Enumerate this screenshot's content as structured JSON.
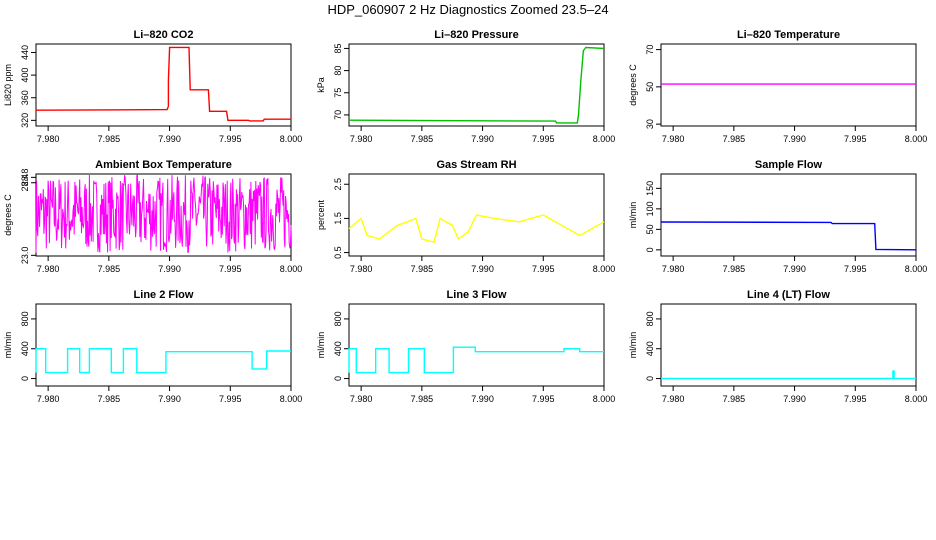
{
  "figure_title": "HDP_060907  2 Hz Diagnostics Zoomed 23.5–24",
  "colors": {
    "co2": "#ff0000",
    "pressure": "#00c000",
    "temperature": "#ff00ff",
    "ambient": "#ff00ff",
    "rh": "#ffff00",
    "sample_flow": "#0000ff",
    "line2": "#00ffff",
    "line3": "#00ffff",
    "line4": "#00ffff"
  },
  "chart_data": [
    {
      "type": "line",
      "title": "Li–820 CO2",
      "xlabel": "",
      "ylabel": "Li820 ppm",
      "xlim": [
        7.979,
        8.0
      ],
      "ylim": [
        310,
        455
      ],
      "xticks": [
        7.98,
        7.985,
        7.99,
        7.995,
        8.0
      ],
      "xtick_labels": [
        "7.980",
        "7.985",
        "7.990",
        "7.995",
        "8.000"
      ],
      "yticks": [
        320,
        360,
        400,
        440
      ],
      "ytick_labels": [
        "320",
        "360",
        "400",
        "440"
      ],
      "series": [
        {
          "color": "#ff0000",
          "x": [
            7.979,
            7.9898,
            7.9899,
            7.9899,
            7.99,
            7.9916,
            7.9917,
            7.9932,
            7.9933,
            7.9947,
            7.9948,
            7.9965,
            7.9966,
            7.9977,
            7.9978,
            8.0
          ],
          "y": [
            338,
            339,
            345,
            390,
            449,
            449,
            374,
            374,
            336,
            336,
            320,
            320,
            319,
            319,
            322,
            322
          ]
        }
      ]
    },
    {
      "type": "line",
      "title": "Li–820 Pressure",
      "xlabel": "",
      "ylabel": "kPa",
      "xlim": [
        7.979,
        8.0
      ],
      "ylim": [
        67.5,
        86
      ],
      "xticks": [
        7.98,
        7.985,
        7.99,
        7.995,
        8.0
      ],
      "xtick_labels": [
        "7.980",
        "7.985",
        "7.990",
        "7.995",
        "8.000"
      ],
      "yticks": [
        70,
        75,
        80,
        85
      ],
      "ytick_labels": [
        "70",
        "75",
        "80",
        "85"
      ],
      "series": [
        {
          "color": "#00c000",
          "x": [
            7.979,
            7.996,
            7.9961,
            7.9978,
            7.9979,
            7.9981,
            7.9983,
            7.9985,
            8.0
          ],
          "y": [
            68.8,
            68.6,
            68.2,
            68.2,
            70,
            78,
            84.5,
            85.2,
            85.0
          ]
        }
      ]
    },
    {
      "type": "line",
      "title": "Li–820 Temperature",
      "xlabel": "",
      "ylabel": "degrees C",
      "xlim": [
        7.979,
        8.0
      ],
      "ylim": [
        29,
        73
      ],
      "xticks": [
        7.98,
        7.985,
        7.99,
        7.995,
        8.0
      ],
      "xtick_labels": [
        "7.980",
        "7.985",
        "7.990",
        "7.995",
        "8.000"
      ],
      "yticks": [
        30,
        50,
        70
      ],
      "ytick_labels": [
        "30",
        "50",
        "70"
      ],
      "series": [
        {
          "color": "#ff00ff",
          "x": [
            7.979,
            8.0
          ],
          "y": [
            51.5,
            51.5
          ]
        }
      ]
    },
    {
      "type": "line",
      "title": "Ambient Box Temperature",
      "xlabel": "",
      "ylabel": "degrees C",
      "xlim": [
        7.979,
        8.0
      ],
      "ylim": [
        22.95,
        29.05
      ],
      "xticks": [
        7.98,
        7.985,
        7.99,
        7.995,
        8.0
      ],
      "xtick_labels": [
        "7.980",
        "7.985",
        "7.990",
        "7.995",
        "8.000"
      ],
      "yticks": [
        23.0,
        28.4,
        28.8
      ],
      "ytick_labels": [
        "23.0",
        "28.4",
        "28.8"
      ],
      "noise_series": {
        "color": "#ff00ff",
        "center": 26.1,
        "spread": 2.9
      }
    },
    {
      "type": "line",
      "title": "Gas Stream RH",
      "xlabel": "",
      "ylabel": "percent",
      "xlim": [
        7.979,
        8.0
      ],
      "ylim": [
        0.4,
        2.8
      ],
      "xticks": [
        7.98,
        7.985,
        7.99,
        7.995,
        8.0
      ],
      "xtick_labels": [
        "7.980",
        "7.985",
        "7.990",
        "7.995",
        "8.000"
      ],
      "yticks": [
        0.5,
        1.5,
        2.5
      ],
      "ytick_labels": [
        "0.5",
        "1.5",
        "2.5"
      ],
      "series": [
        {
          "color": "#ffff00",
          "x": [
            7.979,
            7.98,
            7.9805,
            7.9815,
            7.983,
            7.9838,
            7.9845,
            7.985,
            7.986,
            7.9865,
            7.9875,
            7.988,
            7.9888,
            7.9895,
            7.991,
            7.993,
            7.995,
            7.9965,
            7.998,
            7.999,
            8.0
          ],
          "y": [
            1.2,
            1.5,
            1.0,
            0.9,
            1.3,
            1.4,
            1.5,
            0.9,
            0.8,
            1.5,
            1.3,
            0.9,
            1.1,
            1.6,
            1.5,
            1.4,
            1.6,
            1.3,
            1.0,
            1.2,
            1.4
          ]
        }
      ]
    },
    {
      "type": "line",
      "title": "Sample Flow",
      "xlabel": "",
      "ylabel": "ml/min",
      "xlim": [
        7.979,
        8.0
      ],
      "ylim": [
        -15,
        185
      ],
      "xticks": [
        7.98,
        7.985,
        7.99,
        7.995,
        8.0
      ],
      "xtick_labels": [
        "7.980",
        "7.985",
        "7.990",
        "7.995",
        "8.000"
      ],
      "yticks": [
        0,
        50,
        100,
        150
      ],
      "ytick_labels": [
        "0",
        "50",
        "100",
        "150"
      ],
      "series": [
        {
          "color": "#0000ff",
          "x": [
            7.979,
            7.993,
            7.9931,
            7.9966,
            7.9967,
            8.0
          ],
          "y": [
            68,
            67,
            64,
            64,
            1,
            0
          ]
        }
      ]
    },
    {
      "type": "line",
      "title": "Line 2 Flow",
      "xlabel": "",
      "ylabel": "ml/min",
      "xlim": [
        7.979,
        8.0
      ],
      "ylim": [
        -100,
        1000
      ],
      "xticks": [
        7.98,
        7.985,
        7.99,
        7.995,
        8.0
      ],
      "xtick_labels": [
        "7.980",
        "7.985",
        "7.990",
        "7.995",
        "8.000"
      ],
      "yticks": [
        0,
        400,
        800
      ],
      "ytick_labels": [
        "0",
        "400",
        "800"
      ],
      "series": [
        {
          "color": "#00ffff",
          "x": [
            7.979,
            7.979,
            7.9798,
            7.9798,
            7.9806,
            7.9806,
            7.9816,
            7.9816,
            7.9826,
            7.9826,
            7.9834,
            7.9834,
            7.9842,
            7.9842,
            7.9852,
            7.9852,
            7.9862,
            7.9862,
            7.9873,
            7.9873,
            7.9879,
            7.9879,
            7.9897,
            7.9897,
            7.9968,
            7.9968,
            7.998,
            7.998,
            8.0
          ],
          "y": [
            80,
            400,
            400,
            80,
            80,
            80,
            80,
            400,
            400,
            80,
            80,
            400,
            400,
            400,
            400,
            80,
            80,
            400,
            400,
            80,
            80,
            80,
            80,
            360,
            360,
            130,
            130,
            370,
            370
          ]
        }
      ]
    },
    {
      "type": "line",
      "title": "Line 3 Flow",
      "xlabel": "",
      "ylabel": "ml/min",
      "xlim": [
        7.979,
        8.0
      ],
      "ylim": [
        -100,
        1000
      ],
      "xticks": [
        7.98,
        7.985,
        7.99,
        7.995,
        8.0
      ],
      "xtick_labels": [
        "7.980",
        "7.985",
        "7.990",
        "7.995",
        "8.000"
      ],
      "yticks": [
        0,
        400,
        800
      ],
      "ytick_labels": [
        "0",
        "400",
        "800"
      ],
      "series": [
        {
          "color": "#00ffff",
          "x": [
            7.979,
            7.979,
            7.9796,
            7.9796,
            7.9812,
            7.9812,
            7.9823,
            7.9823,
            7.9839,
            7.9839,
            7.9852,
            7.9852,
            7.9863,
            7.9863,
            7.9876,
            7.9876,
            7.9894,
            7.9894,
            7.9967,
            7.9967,
            7.998,
            7.998,
            8.0
          ],
          "y": [
            80,
            400,
            400,
            80,
            80,
            400,
            400,
            80,
            80,
            400,
            400,
            80,
            80,
            80,
            80,
            420,
            420,
            360,
            360,
            400,
            400,
            360,
            360
          ]
        }
      ]
    },
    {
      "type": "line",
      "title": "Line 4 (LT) Flow",
      "xlabel": "",
      "ylabel": "ml/min",
      "xlim": [
        7.979,
        8.0
      ],
      "ylim": [
        -100,
        1000
      ],
      "xticks": [
        7.98,
        7.985,
        7.99,
        7.995,
        8.0
      ],
      "xtick_labels": [
        "7.980",
        "7.985",
        "7.990",
        "7.995",
        "8.000"
      ],
      "yticks": [
        0,
        400,
        800
      ],
      "ytick_labels": [
        "0",
        "400",
        "800"
      ],
      "series": [
        {
          "color": "#00ffff",
          "x": [
            7.979,
            7.9981,
            7.9981,
            7.9982,
            7.9982,
            8.0
          ],
          "y": [
            0,
            0,
            100,
            100,
            0,
            0
          ]
        }
      ]
    }
  ]
}
